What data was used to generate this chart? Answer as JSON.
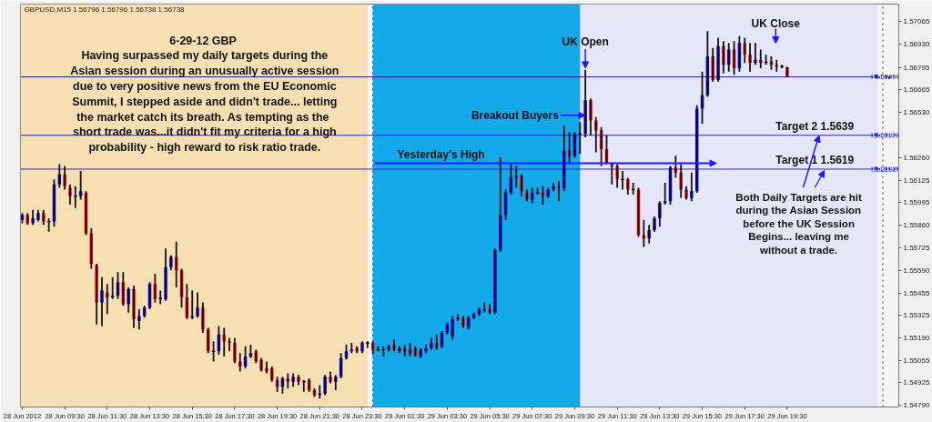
{
  "chart_data": {
    "type": "candlestick",
    "title": "GBPUSD,M15  1.56796 1.56796 1.56738 1.56738",
    "x": [
      "2012-06-28T07:30",
      "2012-06-28T07:45",
      "2012-06-28T08:00",
      "2012-06-28T08:15",
      "2012-06-28T08:30",
      "2012-06-28T08:45",
      "2012-06-28T09:00",
      "2012-06-28T09:15",
      "2012-06-28T09:30",
      "2012-06-28T09:45",
      "2012-06-28T10:00",
      "2012-06-28T10:15",
      "2012-06-28T10:30",
      "2012-06-28T10:45",
      "2012-06-28T11:00",
      "2012-06-28T11:15",
      "2012-06-28T11:30",
      "2012-06-28T11:45",
      "2012-06-28T12:00",
      "2012-06-28T12:15",
      "2012-06-28T12:30",
      "2012-06-28T12:45",
      "2012-06-28T13:00",
      "2012-06-28T13:15",
      "2012-06-28T13:30",
      "2012-06-28T13:45",
      "2012-06-28T14:00",
      "2012-06-28T14:15",
      "2012-06-28T14:30",
      "2012-06-28T14:45",
      "2012-06-28T15:00",
      "2012-06-28T15:15",
      "2012-06-28T15:30",
      "2012-06-28T15:45",
      "2012-06-28T16:00",
      "2012-06-28T16:15",
      "2012-06-28T16:30",
      "2012-06-28T16:45",
      "2012-06-28T17:00",
      "2012-06-28T17:15",
      "2012-06-28T17:30",
      "2012-06-28T17:45",
      "2012-06-28T18:00",
      "2012-06-28T18:15",
      "2012-06-28T18:30",
      "2012-06-28T18:45",
      "2012-06-28T19:00",
      "2012-06-28T19:15",
      "2012-06-28T19:30",
      "2012-06-28T19:45",
      "2012-06-28T20:00",
      "2012-06-28T20:15",
      "2012-06-28T20:30",
      "2012-06-28T20:45",
      "2012-06-28T21:00",
      "2012-06-28T21:15",
      "2012-06-28T21:30",
      "2012-06-28T21:45",
      "2012-06-28T22:00",
      "2012-06-28T22:15",
      "2012-06-28T22:30",
      "2012-06-28T22:45",
      "2012-06-28T23:00",
      "2012-06-28T23:15",
      "2012-06-28T23:30",
      "2012-06-28T23:45",
      "2012-06-29T00:00",
      "2012-06-29T00:15",
      "2012-06-29T00:30",
      "2012-06-29T00:45",
      "2012-06-29T01:00",
      "2012-06-29T01:15",
      "2012-06-29T01:30",
      "2012-06-29T01:45",
      "2012-06-29T02:00",
      "2012-06-29T02:15",
      "2012-06-29T02:30",
      "2012-06-29T02:45",
      "2012-06-29T03:00",
      "2012-06-29T03:15",
      "2012-06-29T03:30",
      "2012-06-29T03:45",
      "2012-06-29T04:00",
      "2012-06-29T04:15",
      "2012-06-29T04:30",
      "2012-06-29T04:45",
      "2012-06-29T05:00",
      "2012-06-29T05:15",
      "2012-06-29T05:30",
      "2012-06-29T05:45",
      "2012-06-29T06:00",
      "2012-06-29T06:15",
      "2012-06-29T06:30",
      "2012-06-29T06:45",
      "2012-06-29T07:00",
      "2012-06-29T07:15",
      "2012-06-29T07:30",
      "2012-06-29T07:45",
      "2012-06-29T08:00",
      "2012-06-29T08:15",
      "2012-06-29T08:30",
      "2012-06-29T08:45",
      "2012-06-29T09:00",
      "2012-06-29T09:15",
      "2012-06-29T09:30",
      "2012-06-29T09:45",
      "2012-06-29T10:00",
      "2012-06-29T10:15",
      "2012-06-29T10:30",
      "2012-06-29T10:45",
      "2012-06-29T11:00",
      "2012-06-29T11:15",
      "2012-06-29T11:30",
      "2012-06-29T11:45",
      "2012-06-29T12:00",
      "2012-06-29T12:15",
      "2012-06-29T12:30",
      "2012-06-29T12:45",
      "2012-06-29T13:00",
      "2012-06-29T13:15",
      "2012-06-29T13:30",
      "2012-06-29T13:45",
      "2012-06-29T14:00",
      "2012-06-29T14:15",
      "2012-06-29T14:30",
      "2012-06-29T14:45",
      "2012-06-29T15:00",
      "2012-06-29T15:15",
      "2012-06-29T15:30",
      "2012-06-29T15:45",
      "2012-06-29T16:00",
      "2012-06-29T16:15",
      "2012-06-29T16:30",
      "2012-06-29T16:45",
      "2012-06-29T17:00",
      "2012-06-29T17:15",
      "2012-06-29T17:30",
      "2012-06-29T17:45",
      "2012-06-29T18:00",
      "2012-06-29T18:15",
      "2012-06-29T18:30",
      "2012-06-29T18:45",
      "2012-06-29T19:00",
      "2012-06-29T19:15",
      "2012-06-29T19:30"
    ],
    "ohlc": [
      [
        1.5589,
        1.5593,
        1.5587,
        1.5592
      ],
      [
        1.5592,
        1.5593,
        1.5586,
        1.5587
      ],
      [
        1.5587,
        1.5595,
        1.5586,
        1.559
      ],
      [
        1.5589,
        1.5595,
        1.5588,
        1.5593
      ],
      [
        1.5593,
        1.5595,
        1.5586,
        1.5588
      ],
      [
        1.5588,
        1.559,
        1.5582,
        1.5588
      ],
      [
        1.5588,
        1.5613,
        1.5585,
        1.561
      ],
      [
        1.561,
        1.5622,
        1.5608,
        1.5616
      ],
      [
        1.5616,
        1.5621,
        1.5607,
        1.5609
      ],
      [
        1.5608,
        1.561,
        1.5598,
        1.5603
      ],
      [
        1.5603,
        1.5609,
        1.5596,
        1.5603
      ],
      [
        1.5603,
        1.5618,
        1.5601,
        1.5606
      ],
      [
        1.5605,
        1.5606,
        1.558,
        1.5581
      ],
      [
        1.5581,
        1.5584,
        1.556,
        1.5563
      ],
      [
        1.5562,
        1.5563,
        1.5527,
        1.554
      ],
      [
        1.554,
        1.5555,
        1.5526,
        1.5547
      ],
      [
        1.5546,
        1.5551,
        1.5533,
        1.5543
      ],
      [
        1.5543,
        1.5555,
        1.5542,
        1.5544
      ],
      [
        1.5544,
        1.5558,
        1.5542,
        1.5552
      ],
      [
        1.5552,
        1.5558,
        1.5538,
        1.5539
      ],
      [
        1.5539,
        1.5549,
        1.5534,
        1.5548
      ],
      [
        1.5548,
        1.555,
        1.5525,
        1.553
      ],
      [
        1.5529,
        1.5536,
        1.5524,
        1.5532
      ],
      [
        1.5532,
        1.5538,
        1.5531,
        1.5537
      ],
      [
        1.5537,
        1.5552,
        1.5536,
        1.5551
      ],
      [
        1.5551,
        1.5557,
        1.554,
        1.5542
      ],
      [
        1.5542,
        1.5547,
        1.5539,
        1.5543
      ],
      [
        1.5542,
        1.5572,
        1.5541,
        1.5561
      ],
      [
        1.5561,
        1.5568,
        1.5559,
        1.5567
      ],
      [
        1.5567,
        1.5576,
        1.5549,
        1.5559
      ],
      [
        1.5559,
        1.556,
        1.5537,
        1.5543
      ],
      [
        1.5543,
        1.5551,
        1.553,
        1.5531
      ],
      [
        1.5531,
        1.5547,
        1.553,
        1.5532
      ],
      [
        1.5532,
        1.5546,
        1.5531,
        1.5537
      ],
      [
        1.5537,
        1.554,
        1.5522,
        1.5524
      ],
      [
        1.5524,
        1.5525,
        1.551,
        1.5511
      ],
      [
        1.5511,
        1.5517,
        1.5505,
        1.5511
      ],
      [
        1.5511,
        1.5526,
        1.5509,
        1.5521
      ],
      [
        1.5521,
        1.5525,
        1.5508,
        1.5517
      ],
      [
        1.5517,
        1.5519,
        1.5511,
        1.5516
      ],
      [
        1.5516,
        1.5519,
        1.5504,
        1.5505
      ],
      [
        1.5505,
        1.551,
        1.5499,
        1.5502
      ],
      [
        1.5502,
        1.5514,
        1.5501,
        1.5508
      ],
      [
        1.5508,
        1.5515,
        1.5507,
        1.551
      ],
      [
        1.5511,
        1.5512,
        1.5504,
        1.5505
      ],
      [
        1.5506,
        1.5507,
        1.5499,
        1.55
      ],
      [
        1.5501,
        1.5505,
        1.5498,
        1.5499
      ],
      [
        1.5501,
        1.5502,
        1.5493,
        1.5494
      ],
      [
        1.5494,
        1.5496,
        1.5487,
        1.549
      ],
      [
        1.549,
        1.5496,
        1.5486,
        1.5495
      ],
      [
        1.5495,
        1.5498,
        1.5489,
        1.5493
      ],
      [
        1.5493,
        1.5498,
        1.549,
        1.5496
      ],
      [
        1.5496,
        1.5497,
        1.5491,
        1.5493
      ],
      [
        1.5493,
        1.5494,
        1.5487,
        1.5493
      ],
      [
        1.5494,
        1.5495,
        1.5487,
        1.5488
      ],
      [
        1.5488,
        1.5489,
        1.5484,
        1.5485
      ],
      [
        1.5485,
        1.5491,
        1.5483,
        1.5486
      ],
      [
        1.5486,
        1.5497,
        1.5485,
        1.5496
      ],
      [
        1.5496,
        1.5499,
        1.5492,
        1.5493
      ],
      [
        1.5493,
        1.5497,
        1.5488,
        1.5496
      ],
      [
        1.5496,
        1.551,
        1.5495,
        1.5507
      ],
      [
        1.5507,
        1.5515,
        1.5506,
        1.5511
      ],
      [
        1.5511,
        1.5516,
        1.551,
        1.5512
      ],
      [
        1.5513,
        1.5514,
        1.551,
        1.5511
      ],
      [
        1.5511,
        1.5517,
        1.551,
        1.5516
      ],
      [
        1.5516,
        1.5517,
        1.5513,
        1.5516
      ],
      [
        1.5516,
        1.5517,
        1.5509,
        1.5512
      ],
      [
        1.5512,
        1.5514,
        1.5511,
        1.5512
      ],
      [
        1.5512,
        1.5514,
        1.5508,
        1.5512
      ],
      [
        1.5512,
        1.5515,
        1.5511,
        1.5514
      ],
      [
        1.5515,
        1.5518,
        1.5511,
        1.5512
      ],
      [
        1.5511,
        1.5514,
        1.551,
        1.5513
      ],
      [
        1.5513,
        1.5515,
        1.5508,
        1.5511
      ],
      [
        1.551,
        1.5516,
        1.5508,
        1.5512
      ],
      [
        1.5513,
        1.5514,
        1.5508,
        1.5508
      ],
      [
        1.5508,
        1.5513,
        1.5507,
        1.5512
      ],
      [
        1.5511,
        1.5515,
        1.551,
        1.5513
      ],
      [
        1.5513,
        1.5519,
        1.5512,
        1.5516
      ],
      [
        1.5516,
        1.5521,
        1.5512,
        1.5513
      ],
      [
        1.5514,
        1.5523,
        1.5513,
        1.5522
      ],
      [
        1.5522,
        1.5528,
        1.5521,
        1.5527
      ],
      [
        1.552,
        1.5532,
        1.5518,
        1.553
      ],
      [
        1.553,
        1.5533,
        1.5529,
        1.5531
      ],
      [
        1.5531,
        1.5532,
        1.5525,
        1.5526
      ],
      [
        1.5525,
        1.5532,
        1.5524,
        1.5531
      ],
      [
        1.5531,
        1.5534,
        1.553,
        1.5533
      ],
      [
        1.5533,
        1.5537,
        1.5532,
        1.5536
      ],
      [
        1.5535,
        1.554,
        1.5534,
        1.5536
      ],
      [
        1.5536,
        1.5539,
        1.5533,
        1.5534
      ],
      [
        1.5534,
        1.5572,
        1.5533,
        1.5571
      ],
      [
        1.5571,
        1.5626,
        1.557,
        1.5592
      ],
      [
        1.5592,
        1.5607,
        1.5589,
        1.5605
      ],
      [
        1.5605,
        1.5622,
        1.5604,
        1.5614
      ],
      [
        1.5614,
        1.5621,
        1.5608,
        1.5615
      ],
      [
        1.5615,
        1.5616,
        1.5603,
        1.5606
      ],
      [
        1.5605,
        1.5607,
        1.56,
        1.5601
      ],
      [
        1.5601,
        1.5608,
        1.5599,
        1.5605
      ],
      [
        1.5605,
        1.5608,
        1.5604,
        1.5605
      ],
      [
        1.5605,
        1.5609,
        1.5598,
        1.5603
      ],
      [
        1.5603,
        1.5608,
        1.5602,
        1.5607
      ],
      [
        1.5607,
        1.5611,
        1.5606,
        1.5609
      ],
      [
        1.5609,
        1.5612,
        1.56,
        1.5608
      ],
      [
        1.5608,
        1.5645,
        1.5606,
        1.563
      ],
      [
        1.563,
        1.5641,
        1.5622,
        1.5627
      ],
      [
        1.5627,
        1.5641,
        1.5626,
        1.564
      ],
      [
        1.564,
        1.5647,
        1.5628,
        1.564
      ],
      [
        1.564,
        1.5678,
        1.5638,
        1.566
      ],
      [
        1.566,
        1.5661,
        1.5639,
        1.5648
      ],
      [
        1.5648,
        1.565,
        1.5629,
        1.5642
      ],
      [
        1.5642,
        1.5644,
        1.5621,
        1.5631
      ],
      [
        1.5631,
        1.5639,
        1.5622,
        1.5623
      ],
      [
        1.5622,
        1.5623,
        1.561,
        1.5621
      ],
      [
        1.5621,
        1.5622,
        1.5608,
        1.5613
      ],
      [
        1.5613,
        1.5618,
        1.5607,
        1.5613
      ],
      [
        1.5613,
        1.5614,
        1.5604,
        1.5607
      ],
      [
        1.5607,
        1.5611,
        1.5604,
        1.5607
      ],
      [
        1.5607,
        1.5608,
        1.5579,
        1.558
      ],
      [
        1.558,
        1.5589,
        1.5573,
        1.5578
      ],
      [
        1.5578,
        1.5586,
        1.5575,
        1.5583
      ],
      [
        1.5583,
        1.5591,
        1.5582,
        1.559
      ],
      [
        1.559,
        1.56,
        1.5585,
        1.5599
      ],
      [
        1.5599,
        1.5611,
        1.5598,
        1.56
      ],
      [
        1.56,
        1.5621,
        1.5598,
        1.562
      ],
      [
        1.562,
        1.5627,
        1.5614,
        1.5617
      ],
      [
        1.5617,
        1.5622,
        1.5602,
        1.5607
      ],
      [
        1.5607,
        1.5609,
        1.5601,
        1.5602
      ],
      [
        1.5602,
        1.5617,
        1.56,
        1.5606
      ],
      [
        1.5606,
        1.5657,
        1.5605,
        1.5655
      ],
      [
        1.5655,
        1.5677,
        1.5646,
        1.5663
      ],
      [
        1.5663,
        1.5701,
        1.5662,
        1.5686
      ],
      [
        1.5686,
        1.5691,
        1.5671,
        1.5672
      ],
      [
        1.5672,
        1.5697,
        1.5671,
        1.5692
      ],
      [
        1.5692,
        1.5695,
        1.5676,
        1.5681
      ],
      [
        1.5681,
        1.5694,
        1.5677,
        1.569
      ],
      [
        1.569,
        1.5695,
        1.5675,
        1.5679
      ],
      [
        1.5679,
        1.5698,
        1.5677,
        1.5694
      ],
      [
        1.5694,
        1.5697,
        1.5682,
        1.5687
      ],
      [
        1.5687,
        1.5694,
        1.5677,
        1.5682
      ],
      [
        1.5682,
        1.5694,
        1.5681,
        1.5684
      ],
      [
        1.5684,
        1.569,
        1.5679,
        1.5682
      ],
      [
        1.5682,
        1.5687,
        1.5681,
        1.5683
      ],
      [
        1.5683,
        1.5686,
        1.5678,
        1.5681
      ],
      [
        1.5681,
        1.5684,
        1.5677,
        1.568
      ],
      [
        1.568,
        1.5681,
        1.5679,
        1.568
      ],
      [
        1.56796,
        1.56796,
        1.56738,
        1.56738
      ]
    ],
    "colors": [
      "#0000ff",
      "#ff0000",
      "#0000ff",
      "#0000ff",
      "#ff0000",
      "#000000",
      "#0000ff",
      "#0000ff",
      "#ff0000",
      "#ff0000",
      "#000000",
      "#0000ff",
      "#ff0000",
      "#ff0000",
      "#ff0000",
      "#0000ff",
      "#ff0000",
      "#0000ff",
      "#0000ff",
      "#ff0000",
      "#0000ff",
      "#ff0000",
      "#0000ff",
      "#0000ff",
      "#0000ff",
      "#ff0000",
      "#0000ff",
      "#0000ff",
      "#0000ff",
      "#ff0000",
      "#ff0000",
      "#ff0000",
      "#0000ff",
      "#0000ff",
      "#ff0000",
      "#ff0000",
      "#000000",
      "#0000ff",
      "#ff0000",
      "#ff0000",
      "#ff0000",
      "#ff0000",
      "#0000ff",
      "#0000ff",
      "#ff0000",
      "#ff0000",
      "#ff0000",
      "#ff0000",
      "#ff0000",
      "#0000ff",
      "#ff0000",
      "#0000ff",
      "#ff0000",
      "#000000",
      "#ff0000",
      "#ff0000",
      "#0000ff",
      "#0000ff",
      "#ff0000",
      "#0000ff",
      "#0000ff",
      "#0000ff",
      "#0000ff",
      "#ff0000",
      "#0000ff",
      "#000000",
      "#ff0000",
      "#000000",
      "#000000",
      "#0000ff",
      "#ff0000",
      "#0000ff",
      "#ff0000",
      "#0000ff",
      "#ff0000",
      "#0000ff",
      "#0000ff",
      "#0000ff",
      "#ff0000",
      "#0000ff",
      "#0000ff",
      "#0000ff",
      "#0000ff",
      "#ff0000",
      "#0000ff",
      "#0000ff",
      "#0000ff",
      "#0000ff",
      "#ff0000",
      "#0000ff",
      "#0000ff",
      "#0000ff",
      "#0000ff",
      "#0000ff",
      "#ff0000",
      "#ff0000",
      "#0000ff",
      "#000000",
      "#ff0000",
      "#0000ff",
      "#0000ff",
      "#ff0000",
      "#0000ff",
      "#ff0000",
      "#0000ff",
      "#000000",
      "#0000ff",
      "#ff0000",
      "#ff0000",
      "#ff0000",
      "#ff0000",
      "#ff0000",
      "#ff0000",
      "#000000",
      "#ff0000",
      "#000000",
      "#ff0000",
      "#ff0000",
      "#0000ff",
      "#0000ff",
      "#0000ff",
      "#0000ff",
      "#0000ff",
      "#ff0000",
      "#ff0000",
      "#ff0000",
      "#0000ff",
      "#0000ff",
      "#0000ff",
      "#0000ff",
      "#ff0000",
      "#0000ff",
      "#ff0000",
      "#0000ff",
      "#ff0000",
      "#0000ff",
      "#ff0000",
      "#ff0000",
      "#0000ff",
      "#ff0000",
      "#0000ff",
      "#ff0000",
      "#ff0000",
      "#000000",
      "#ff0000"
    ],
    "xlim": [
      "2012-06-28T07:25",
      "2012-06-30T00:45"
    ],
    "ylim": [
      1.5478,
      1.5717
    ],
    "xticks": [
      {
        "value": "2012-06-28T07:30",
        "label": "28 Jun 2012"
      },
      {
        "value": "2012-06-28T09:30",
        "label": "28 Jun 09:30"
      },
      {
        "value": "2012-06-28T11:30",
        "label": "28 Jun 11:30"
      },
      {
        "value": "2012-06-28T13:30",
        "label": "28 Jun 13:30"
      },
      {
        "value": "2012-06-28T15:30",
        "label": "28 Jun 15:30"
      },
      {
        "value": "2012-06-28T17:30",
        "label": "28 Jun 17:30"
      },
      {
        "value": "2012-06-28T19:30",
        "label": "28 Jun 19:30"
      },
      {
        "value": "2012-06-28T21:30",
        "label": "28 Jun 21:30"
      },
      {
        "value": "2012-06-28T23:30",
        "label": "28 Jun 23:30"
      },
      {
        "value": "2012-06-29T01:30",
        "label": "29 Jun 01:30"
      },
      {
        "value": "2012-06-29T03:30",
        "label": "29 Jun 03:30"
      },
      {
        "value": "2012-06-29T05:30",
        "label": "29 Jun 05:30"
      },
      {
        "value": "2012-06-29T07:30",
        "label": "29 Jun 07:30"
      },
      {
        "value": "2012-06-29T09:30",
        "label": "29 Jun 09:30"
      },
      {
        "value": "2012-06-29T11:30",
        "label": "29 Jun 11:30"
      },
      {
        "value": "2012-06-29T13:30",
        "label": "29 Jun 13:30"
      },
      {
        "value": "2012-06-29T15:30",
        "label": "29 Jun 15:30"
      },
      {
        "value": "2012-06-29T17:30",
        "label": "29 Jun 17:30"
      },
      {
        "value": "2012-06-29T19:30",
        "label": "29 Jun 19:30"
      }
    ],
    "yticks": [
      1.57065,
      {
        "value": 1.5693,
        "label": "1.56930"
      },
      1.56795,
      1.56665,
      {
        "value": 1.5653,
        "label": "1.56530"
      },
      {
        "value": 1.5626,
        "label": "1.56260"
      },
      1.56125,
      1.55995,
      {
        "value": 1.5586,
        "label": "1.55860"
      },
      1.55725,
      {
        "value": 1.5559,
        "label": "1.55590"
      },
      1.55455,
      1.55325,
      {
        "value": 1.5519,
        "label": "1.55190"
      },
      1.55055,
      1.54925,
      {
        "value": 1.5479,
        "label": "1.54790"
      }
    ],
    "bands": [
      {
        "axis": "x",
        "from": "2012-06-28T07:25",
        "to": "2012-06-28T23:45",
        "color": "#f7dfb4"
      },
      {
        "axis": "x",
        "from": "2012-06-29T00:00",
        "to": "2012-06-29T23:45",
        "color": "#e6e6f8"
      },
      {
        "axis": "x",
        "from": "2012-06-29T00:00",
        "to": "2012-06-29T09:45",
        "color": "#14aaea"
      }
    ],
    "ref_lines": [
      {
        "axis": "y",
        "value": 1.56738,
        "label": "1.56738",
        "color": "#1f1f8f"
      },
      {
        "axis": "y",
        "value": 1.56392,
        "label": "1.56392",
        "color": "#2a2ad0"
      },
      {
        "axis": "y",
        "value": 1.56191,
        "label": "1.56191",
        "color": "#2a2ad0"
      },
      {
        "axis": "x",
        "value": "2012-06-29T00:00",
        "color": "#333333",
        "line_style": "dotted"
      },
      {
        "axis": "x",
        "value": "2012-06-30T00:00",
        "color": "#333333",
        "line_style": "dotted"
      }
    ],
    "annotations": [
      "6-29-12  GBP\nHaving surpassed my daily targets during the\nAsian session during an unusually active session\ndue to very positive news from the EU Economic\nSummit, I stepped aside and didn't trade... letting\nthe market catch its breath.  As tempting as the\nshort trade was...it didn't fit my criteria for a high\nprobability - high reward to risk ratio trade.",
      {
        "text": "UK Open",
        "x": "2012-06-29T10:00",
        "y": 1.5679
      },
      {
        "text": "Breakout Buyers",
        "x": "2012-06-29T10:00",
        "y": 1.5651
      },
      "Yesterday's High",
      "UK Close",
      {
        "text": "Target 2  1.5639",
        "y": 1.5639
      },
      {
        "text": "Target 1  1.5619",
        "y": 1.5619
      },
      {
        "text": "Both Daily Targets are hit\nduring the Asian Session\nbefore the UK Session\nBegins... leaving me\nwithout a trade.",
        "x": "2012-06-29T21:00",
        "y": 1.5639
      }
    ]
  }
}
